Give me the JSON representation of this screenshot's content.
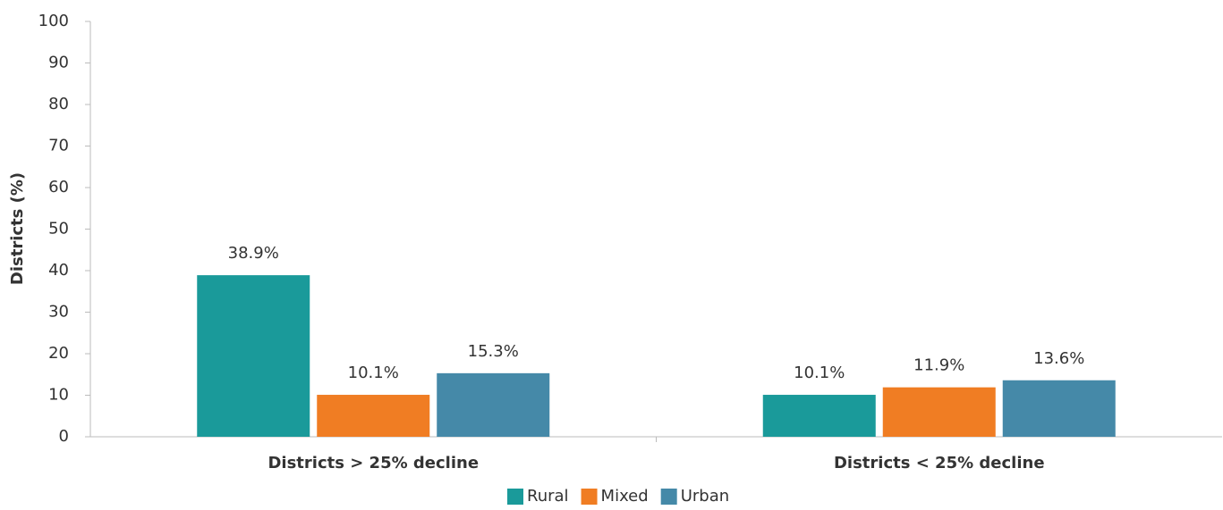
{
  "chart_data": {
    "type": "bar",
    "y_label": "Districts (%)",
    "categories": [
      "Districts > 25% decline",
      "Districts < 25% decline"
    ],
    "series": [
      {
        "name": "Rural",
        "color": "#1a9a9a",
        "values": [
          38.9,
          10.1
        ],
        "value_labels": [
          "38.9%",
          "10.1%"
        ]
      },
      {
        "name": "Mixed",
        "color": "#f07d23",
        "values": [
          10.1,
          11.9
        ],
        "value_labels": [
          "10.1%",
          "11.9%"
        ]
      },
      {
        "name": "Urban",
        "color": "#4589a8",
        "values": [
          15.3,
          13.6
        ],
        "value_labels": [
          "15.3%",
          "13.6%"
        ]
      }
    ],
    "ylim": [
      0,
      100
    ],
    "yticks": [
      0,
      10,
      20,
      30,
      40,
      50,
      60,
      70,
      80,
      90,
      100
    ],
    "grid": false,
    "legend": "bottom"
  }
}
